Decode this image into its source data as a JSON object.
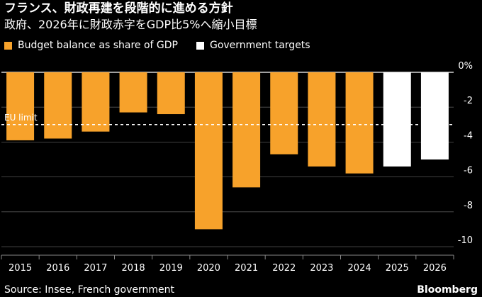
{
  "header": {
    "title": "フランス、財政再建を段階的に進める方針",
    "subtitle": "政府、2026年に財政赤字をGDP比5%へ縮小目標"
  },
  "legend": {
    "actual_label": "Budget balance as share of GDP",
    "target_label": "Government targets"
  },
  "footer": {
    "source": "Source: Insee, French government",
    "brand": "Bloomberg"
  },
  "colors": {
    "actual": "#f7a22b",
    "target": "#ffffff",
    "background": "#000000",
    "grid": "#555555"
  },
  "chart_data": {
    "type": "bar",
    "title": "フランス、財政再建を段階的に進める方針",
    "categories": [
      "2015",
      "2016",
      "2017",
      "2018",
      "2019",
      "2020",
      "2021",
      "2022",
      "2023",
      "2024",
      "2025",
      "2026"
    ],
    "series": [
      {
        "name": "Budget balance as share of GDP",
        "values": [
          -3.9,
          -3.8,
          -3.4,
          -2.3,
          -2.4,
          -9.0,
          -6.6,
          -4.7,
          -5.4,
          -5.8,
          null,
          null
        ]
      },
      {
        "name": "Government targets",
        "values": [
          null,
          null,
          null,
          null,
          null,
          null,
          null,
          null,
          null,
          null,
          -5.4,
          -5.0
        ]
      }
    ],
    "reference_line": {
      "label": "EU limit",
      "value": -3
    },
    "yticks": [
      0,
      -2,
      -4,
      -6,
      -8,
      -10
    ],
    "ytick_labels": [
      "0%",
      "-2",
      "-4",
      "-6",
      "-8",
      "-10"
    ],
    "ylim": [
      -10,
      0
    ],
    "xlabel": "",
    "ylabel": "",
    "axis_position": "right",
    "grid": true
  }
}
